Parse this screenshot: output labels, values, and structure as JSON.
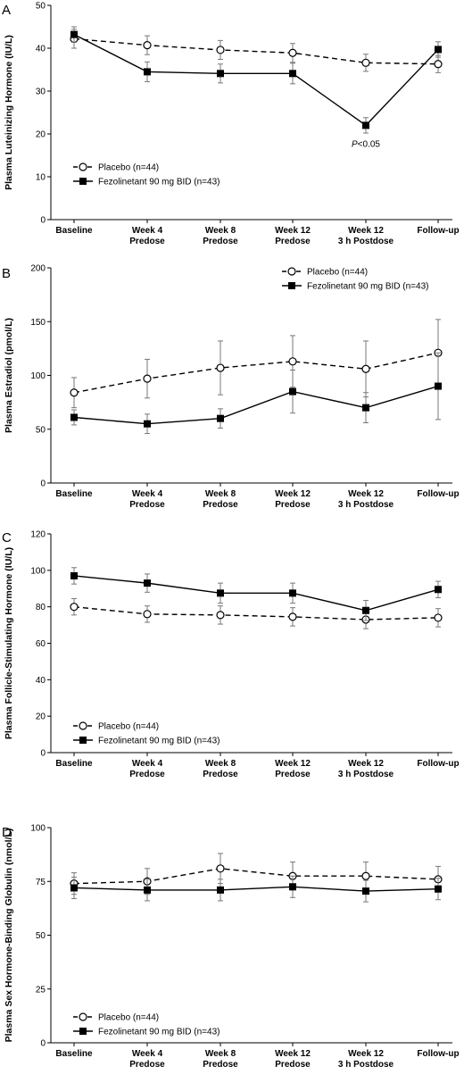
{
  "chart_data": [
    {
      "type": "line",
      "panel_label": "A",
      "ylabel": "Plasma Luteinizing Hormone (IU/L)",
      "ylim": [
        0,
        50
      ],
      "yticks": [
        0,
        10,
        20,
        30,
        40,
        50
      ],
      "categories": [
        [
          "Baseline"
        ],
        [
          "Week 4",
          "Predose"
        ],
        [
          "Week 8",
          "Predose"
        ],
        [
          "Week 12",
          "Predose"
        ],
        [
          "Week 12",
          "3 h Postdose"
        ],
        [
          "Follow-up"
        ]
      ],
      "legend_position": "bottom-left",
      "series": [
        {
          "name": "Placebo (n=44)",
          "marker": "open-circle",
          "line": "dashed",
          "values": [
            42.2,
            40.7,
            39.6,
            38.9,
            36.6,
            36.3
          ],
          "err": [
            2.2,
            2.2,
            2.2,
            2.2,
            2.0,
            2.0
          ]
        },
        {
          "name": "Fezolinetant 90 mg BID (n=43)",
          "marker": "filled-square",
          "line": "solid",
          "values": [
            43.2,
            34.5,
            34.1,
            34.1,
            22.0,
            39.7
          ],
          "err": [
            1.8,
            2.3,
            2.2,
            2.4,
            1.8,
            1.8
          ]
        }
      ],
      "annotations": [
        {
          "category_index": 4,
          "value": 17,
          "parts": [
            "P",
            "<0.05"
          ]
        }
      ]
    },
    {
      "type": "line",
      "panel_label": "B",
      "ylabel": "Plasma Estradiol (pmol/L)",
      "ylim": [
        0,
        200
      ],
      "yticks": [
        0,
        50,
        100,
        150,
        200
      ],
      "categories": [
        [
          "Baseline"
        ],
        [
          "Week 4",
          "Predose"
        ],
        [
          "Week 8",
          "Predose"
        ],
        [
          "Week 12",
          "Predose"
        ],
        [
          "Week 12",
          "3 h Postdose"
        ],
        [
          "Follow-up"
        ]
      ],
      "legend_position": "top-right",
      "series": [
        {
          "name": "Placebo (n=44)",
          "marker": "open-circle",
          "line": "dashed",
          "values": [
            84,
            97,
            107,
            113,
            106,
            121
          ],
          "err": [
            14,
            18,
            25,
            24,
            26,
            31
          ]
        },
        {
          "name": "Fezolinetant 90 mg BID (n=43)",
          "marker": "filled-square",
          "line": "solid",
          "values": [
            61,
            55,
            60,
            85,
            70,
            90
          ],
          "err": [
            7,
            9,
            9,
            20,
            14,
            31
          ]
        }
      ],
      "annotations": []
    },
    {
      "type": "line",
      "panel_label": "C",
      "ylabel": "Plasma Follicle-Stimulating Hormone (IU/L)",
      "ylim": [
        0,
        120
      ],
      "yticks": [
        0,
        20,
        40,
        60,
        80,
        100,
        120
      ],
      "categories": [
        [
          "Baseline"
        ],
        [
          "Week 4",
          "Predose"
        ],
        [
          "Week 8",
          "Predose"
        ],
        [
          "Week 12",
          "Predose"
        ],
        [
          "Week 12",
          "3 h Postdose"
        ],
        [
          "Follow-up"
        ]
      ],
      "legend_position": "bottom-left",
      "series": [
        {
          "name": "Placebo (n=44)",
          "marker": "open-circle",
          "line": "dashed",
          "values": [
            80,
            76,
            75.5,
            74.5,
            73,
            74
          ],
          "err": [
            4.5,
            4.5,
            5,
            5,
            5,
            5
          ]
        },
        {
          "name": "Fezolinetant 90 mg BID (n=43)",
          "marker": "filled-square",
          "line": "solid",
          "values": [
            97,
            93,
            87.5,
            87.5,
            78,
            89.5
          ],
          "err": [
            4.5,
            5,
            5.5,
            5.5,
            5.5,
            4.5
          ]
        }
      ],
      "annotations": []
    },
    {
      "type": "line",
      "panel_label": "D",
      "ylabel": "Plasma Sex Hormone-Binding Globulin (nmol/L)",
      "ylim": [
        0,
        100
      ],
      "yticks": [
        0,
        25,
        50,
        75,
        100
      ],
      "categories": [
        [
          "Baseline"
        ],
        [
          "Week 4",
          "Predose"
        ],
        [
          "Week 8",
          "Predose"
        ],
        [
          "Week 12",
          "Predose"
        ],
        [
          "Week 12",
          "3 h Postdose"
        ],
        [
          "Follow-up"
        ]
      ],
      "legend_position": "bottom-left",
      "series": [
        {
          "name": "Placebo (n=44)",
          "marker": "open-circle",
          "line": "dashed",
          "values": [
            74,
            75,
            81,
            77.5,
            77.5,
            76
          ],
          "err": [
            5,
            6,
            7,
            6.5,
            6.5,
            6
          ]
        },
        {
          "name": "Fezolinetant 90 mg BID (n=43)",
          "marker": "filled-square",
          "line": "solid",
          "values": [
            72,
            71,
            71,
            72.5,
            70.5,
            71.5
          ],
          "err": [
            5,
            5,
            5,
            5,
            5,
            5
          ]
        }
      ],
      "annotations": []
    }
  ]
}
